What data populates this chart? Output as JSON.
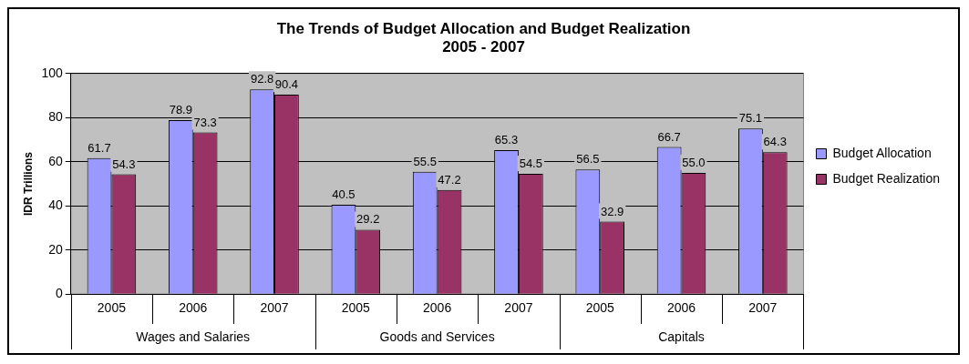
{
  "chart_data": {
    "type": "bar",
    "title": "The Trends of Budget Allocation and Budget Realization\n2005 - 2007",
    "ylabel": "IDR Trillions",
    "categories": [
      "2005",
      "2006",
      "2007",
      "2005",
      "2006",
      "2007",
      "2005",
      "2006",
      "2007"
    ],
    "annotations": [
      "Wages and Salaries",
      "Goods and Services",
      "Capitals"
    ],
    "series": [
      {
        "name": "Budget Allocation",
        "color": "#9999ff",
        "values": [
          61.7,
          78.9,
          92.8,
          40.5,
          55.5,
          65.3,
          56.5,
          66.7,
          75.1
        ],
        "value_labels": [
          "61.7",
          "78.9",
          "92.8",
          "40.5",
          "55.5",
          "65.3",
          "56.5",
          "66.7",
          "75.1"
        ]
      },
      {
        "name": "Budget Realization",
        "color": "#993366",
        "values": [
          54.3,
          73.3,
          90.4,
          29.2,
          47.2,
          54.5,
          32.9,
          55.0,
          64.3
        ],
        "value_labels": [
          "54.3",
          "73.3",
          "90.4",
          "29.2",
          "47.2",
          "54.5",
          "32.9",
          "55.0",
          "64.3"
        ]
      }
    ],
    "ylim": [
      0,
      100
    ],
    "yticks": [
      0,
      20,
      40,
      60,
      80,
      100
    ],
    "grid": "y",
    "legend": "right"
  }
}
